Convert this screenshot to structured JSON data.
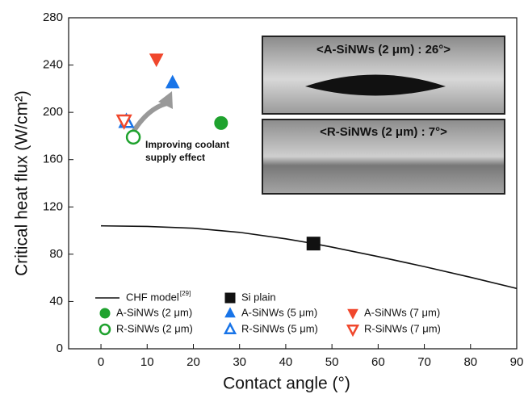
{
  "chart_data": {
    "type": "scatter",
    "xlabel": "Contact angle (°)",
    "ylabel": "Critical heat flux (W/cm²)",
    "xlim": [
      -7,
      90
    ],
    "xticks": [
      0,
      10,
      20,
      30,
      40,
      50,
      60,
      70,
      80,
      90
    ],
    "ylim": [
      0,
      280
    ],
    "yticks": [
      0,
      40,
      80,
      120,
      160,
      200,
      240,
      280
    ],
    "series": [
      {
        "name": "CHF model",
        "reference": "[29]",
        "color": "#111111",
        "marker": "line",
        "x": [
          0,
          10,
          20,
          30,
          40,
          46,
          50,
          60,
          70,
          80,
          90
        ],
        "values": [
          104,
          103.5,
          102,
          98.5,
          93,
          89,
          86,
          78,
          69.5,
          60.5,
          51
        ]
      },
      {
        "name": "Si plain",
        "color": "#111111",
        "marker": "square",
        "filled": true,
        "x": [
          46
        ],
        "values": [
          89
        ]
      },
      {
        "name": "A-SiNWs (2 μm)",
        "color": "#1fa22e",
        "marker": "circle",
        "filled": true,
        "x": [
          26
        ],
        "values": [
          191
        ]
      },
      {
        "name": "R-SiNWs (2 μm)",
        "color": "#1fa22e",
        "marker": "circle",
        "filled": false,
        "x": [
          7
        ],
        "values": [
          179
        ]
      },
      {
        "name": "A-SiNWs (5 μm)",
        "color": "#1874e8",
        "marker": "triangle-up",
        "filled": true,
        "x": [
          15.5
        ],
        "values": [
          225
        ]
      },
      {
        "name": "R-SiNWs (5 μm)",
        "color": "#1874e8",
        "marker": "triangle-up",
        "filled": false,
        "x": [
          5.5
        ],
        "values": [
          192
        ]
      },
      {
        "name": "A-SiNWs (7 μm)",
        "color": "#f0472c",
        "marker": "triangle-down",
        "filled": true,
        "x": [
          12
        ],
        "values": [
          245
        ]
      },
      {
        "name": "R-SiNWs (7 μm)",
        "color": "#f0472c",
        "marker": "triangle-down",
        "filled": false,
        "x": [
          5
        ],
        "values": [
          193
        ]
      }
    ],
    "annotation": [
      "Improving coolant",
      "supply effect"
    ],
    "insets": [
      {
        "title": "<A-SiNWs (2 μm) : 26°>"
      },
      {
        "title": "<R-SiNWs (2 μm) : 7°>"
      }
    ]
  }
}
